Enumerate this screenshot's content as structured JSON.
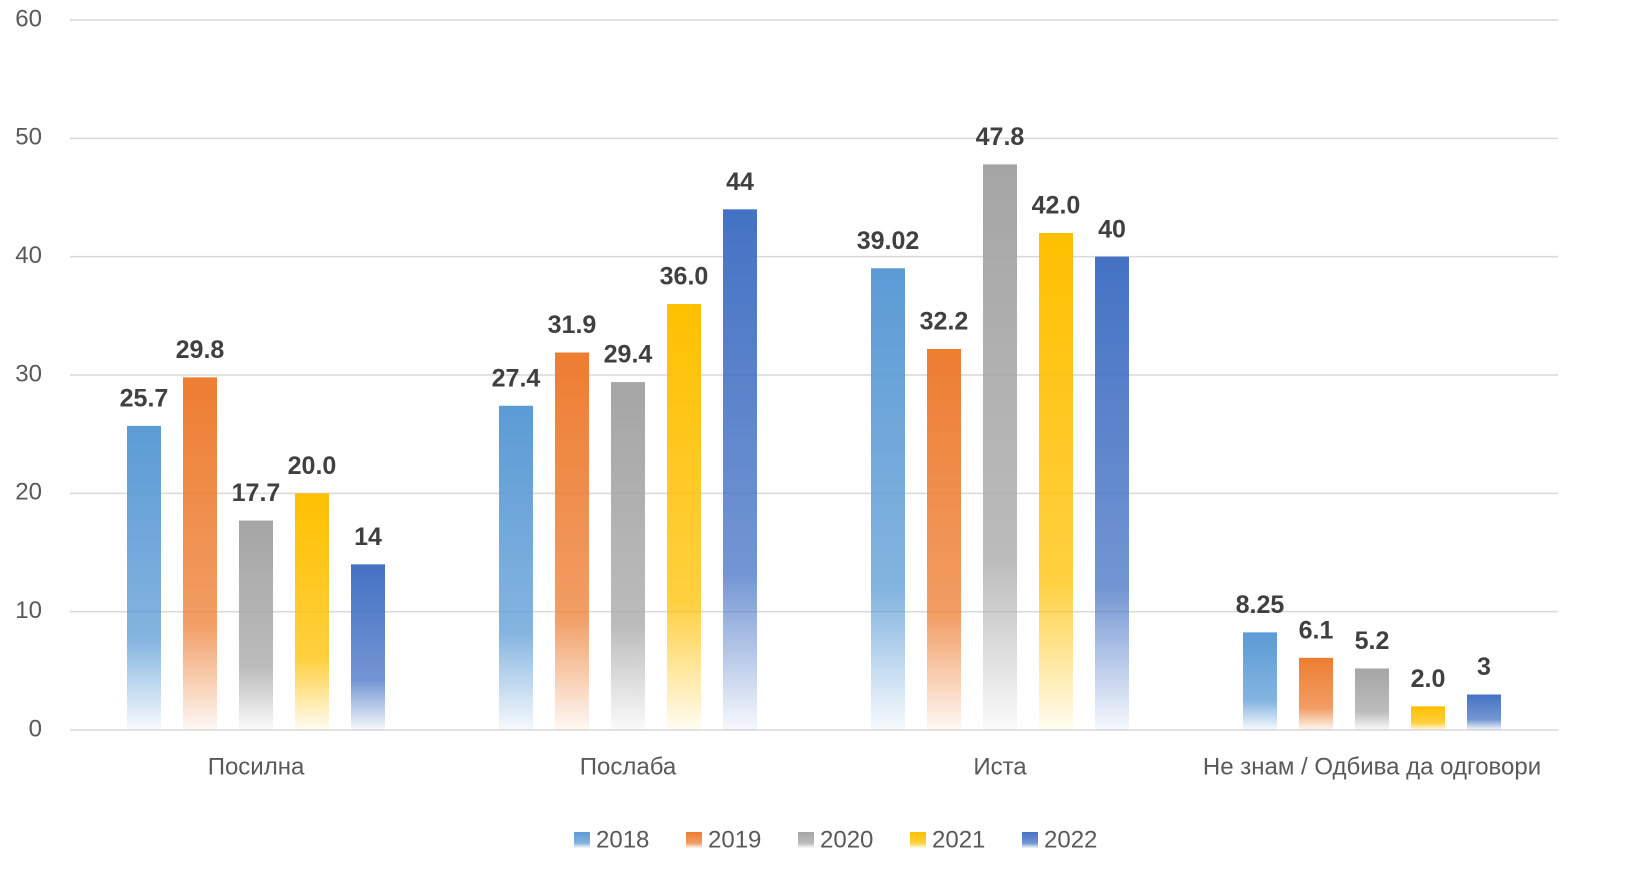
{
  "chart_data": {
    "type": "bar",
    "categories": [
      "Посилна",
      "Послаба",
      "Иста",
      "Не знам / Одбива да одговори"
    ],
    "series": [
      {
        "name": "2018",
        "color": "#5b9bd5",
        "values": [
          25.7,
          27.4,
          39.02,
          8.25
        ]
      },
      {
        "name": "2019",
        "color": "#ed7d31",
        "values": [
          29.8,
          31.9,
          32.2,
          6.1
        ]
      },
      {
        "name": "2020",
        "color": "#a5a5a5",
        "values": [
          17.7,
          29.4,
          47.8,
          5.2
        ]
      },
      {
        "name": "2021",
        "color": "#ffc000",
        "values": [
          20,
          36,
          42,
          2
        ],
        "value_labels": [
          "20.0",
          "36.0",
          "42.0",
          "2.0"
        ]
      },
      {
        "name": "2022",
        "color": "#4472c4",
        "values": [
          14,
          44,
          40,
          3
        ]
      }
    ],
    "ylim": [
      0,
      60
    ],
    "yticks": [
      0,
      10,
      20,
      30,
      40,
      50,
      60
    ],
    "grid": true,
    "legend": "bottom"
  }
}
